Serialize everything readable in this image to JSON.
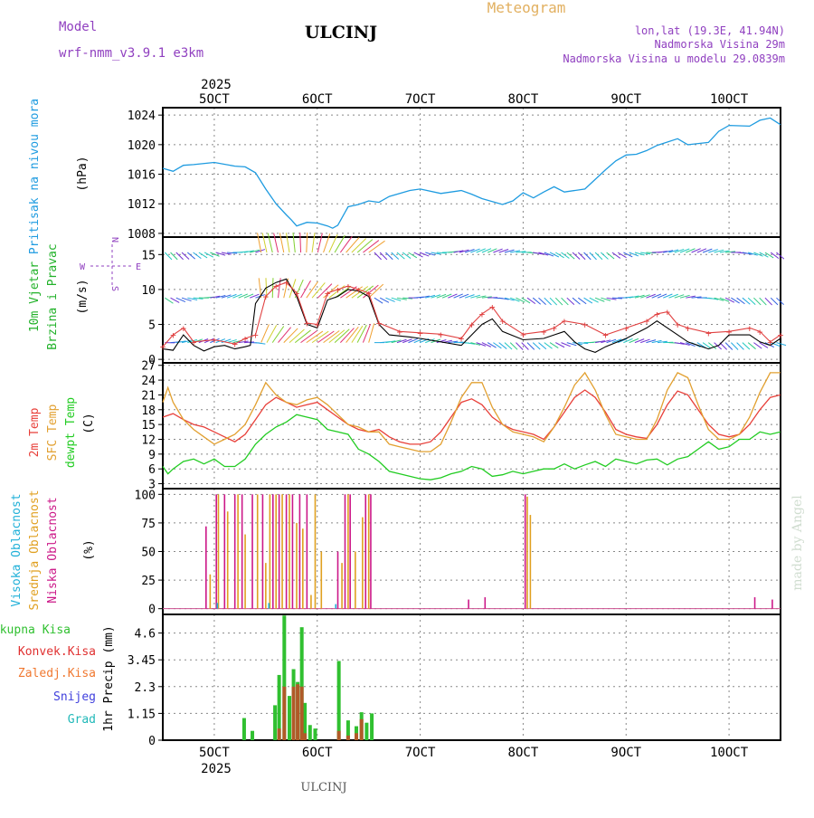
{
  "header": {
    "model_label": "Model",
    "model_name": "wrf-nmm_v3.9.1 e3km",
    "station": "ULCINJ",
    "product": "Meteogram",
    "lonlat": "lon,lat (19.3E, 41.94N)",
    "elevation": "Nadmorska Visina 29m",
    "model_elevation": "Nadmorska Visina u modelu 29.0839m",
    "footer_station": "ULCINJ",
    "watermark": "made by Angel"
  },
  "colors": {
    "pressure": "#1e9be0",
    "wind_label": "#22b22a",
    "temp2m": "#e8403a",
    "sfc_temp": "#e2a030",
    "dewpoint": "#22cc22",
    "high_cloud": "#20b0d8",
    "mid_cloud": "#e0a020",
    "low_cloud": "#cc1888",
    "total_precip": "#30c030",
    "conv_precip": "#e03030",
    "frozen_precip": "#f07830",
    "snow": "#4040dd",
    "hail": "#20b8b8",
    "purple": "#9040c0",
    "wind_speed_line": "#000000",
    "wind_gust": "#e04040"
  },
  "chart_data": [
    {
      "type": "line",
      "title": "Pritisak na nivou mora",
      "ylabel": "(hPa)",
      "ylim": [
        1007.5,
        1025
      ],
      "yticks": [
        1008,
        1012,
        1016,
        1020,
        1024
      ],
      "xlim": [
        4.5,
        10.5
      ],
      "grid": true,
      "series": [
        {
          "name": "Pritisak na nivou mora",
          "x": [
            4.5,
            4.6,
            4.7,
            4.8,
            5.0,
            5.2,
            5.3,
            5.4,
            5.5,
            5.6,
            5.7,
            5.75,
            5.8,
            5.9,
            6.0,
            6.1,
            6.15,
            6.2,
            6.3,
            6.4,
            6.5,
            6.6,
            6.7,
            6.9,
            7.0,
            7.2,
            7.4,
            7.5,
            7.6,
            7.8,
            7.9,
            8.0,
            8.1,
            8.2,
            8.3,
            8.4,
            8.6,
            8.8,
            8.9,
            9.0,
            9.1,
            9.2,
            9.3,
            9.5,
            9.6,
            9.8,
            9.9,
            10.0,
            10.2,
            10.3,
            10.4,
            10.5
          ],
          "values": [
            1016.8,
            1016.4,
            1017.2,
            1017.3,
            1017.6,
            1017.1,
            1017.0,
            1016.2,
            1014.0,
            1012.0,
            1010.5,
            1009.8,
            1009.0,
            1009.5,
            1009.4,
            1009.0,
            1008.7,
            1009.1,
            1011.6,
            1011.9,
            1012.4,
            1012.2,
            1013.0,
            1013.8,
            1014.0,
            1013.4,
            1013.8,
            1013.3,
            1012.7,
            1011.9,
            1012.4,
            1013.5,
            1012.8,
            1013.6,
            1014.3,
            1013.6,
            1014.0,
            1016.6,
            1017.8,
            1018.6,
            1018.7,
            1019.2,
            1019.9,
            1020.8,
            1020.0,
            1020.3,
            1021.8,
            1022.6,
            1022.5,
            1023.3,
            1023.6,
            1022.7
          ]
        }
      ]
    },
    {
      "type": "line",
      "title": "10m Vjetar Brzina i Pravac",
      "ylabel": "(m/s)",
      "ylim": [
        -0.5,
        17.5
      ],
      "yticks": [
        0,
        5,
        10,
        15
      ],
      "xlim": [
        4.5,
        10.5
      ],
      "grid": true,
      "direction_key": {
        "w": "W",
        "e": "E",
        "n": "N",
        "s": "S"
      },
      "series": [
        {
          "name": "speed",
          "x": [
            4.5,
            4.6,
            4.7,
            4.8,
            4.9,
            5.0,
            5.1,
            5.2,
            5.3,
            5.35,
            5.4,
            5.5,
            5.6,
            5.7,
            5.8,
            5.9,
            6.0,
            6.1,
            6.2,
            6.3,
            6.4,
            6.5,
            6.6,
            6.7,
            6.9,
            7.0,
            7.2,
            7.4,
            7.5,
            7.6,
            7.7,
            7.8,
            8.0,
            8.2,
            8.3,
            8.4,
            8.5,
            8.6,
            8.7,
            8.8,
            9.0,
            9.2,
            9.3,
            9.5,
            9.6,
            9.8,
            9.9,
            10.0,
            10.2,
            10.3,
            10.4,
            10.5
          ],
          "values": [
            1.5,
            1.3,
            3.5,
            2.0,
            1.2,
            1.8,
            2.0,
            1.5,
            1.8,
            2.0,
            8.0,
            10.2,
            11.0,
            11.5,
            9.0,
            5.0,
            4.5,
            8.5,
            9.0,
            10.0,
            9.8,
            9.0,
            5.0,
            3.5,
            3.2,
            3.0,
            2.5,
            2.0,
            3.5,
            5.0,
            5.8,
            4.0,
            2.8,
            3.0,
            3.5,
            4.0,
            2.5,
            1.5,
            1.0,
            1.8,
            3.0,
            4.5,
            5.5,
            3.5,
            2.5,
            1.5,
            2.0,
            3.5,
            3.5,
            2.5,
            2.0,
            3.0
          ]
        },
        {
          "name": "gust",
          "x": [
            4.5,
            4.6,
            4.7,
            4.8,
            5.0,
            5.2,
            5.3,
            5.4,
            5.5,
            5.6,
            5.7,
            5.8,
            5.9,
            6.0,
            6.1,
            6.2,
            6.3,
            6.4,
            6.5,
            6.6,
            6.8,
            7.0,
            7.2,
            7.4,
            7.5,
            7.6,
            7.7,
            7.8,
            8.0,
            8.2,
            8.3,
            8.4,
            8.6,
            8.8,
            9.0,
            9.2,
            9.3,
            9.4,
            9.5,
            9.6,
            9.8,
            10.0,
            10.2,
            10.3,
            10.4,
            10.5
          ],
          "values": [
            1.8,
            3.5,
            4.5,
            2.5,
            2.8,
            2.2,
            3.0,
            3.5,
            9.0,
            10.5,
            11.0,
            9.5,
            5.2,
            5.0,
            9.5,
            10.0,
            10.5,
            10.0,
            9.5,
            5.2,
            4.0,
            3.8,
            3.6,
            3.0,
            5.0,
            6.5,
            7.5,
            5.5,
            3.6,
            4.0,
            4.5,
            5.5,
            5.0,
            3.5,
            4.5,
            5.5,
            6.5,
            6.8,
            5.0,
            4.5,
            3.8,
            4.0,
            4.5,
            4.0,
            2.5,
            3.5
          ]
        }
      ]
    },
    {
      "type": "line",
      "title": "2m Temp / SFC Temp / dewpt Temp",
      "ylabel": "(C)",
      "ylim": [
        2,
        27.5
      ],
      "yticks": [
        3,
        6,
        9,
        12,
        15,
        18,
        21,
        24,
        27
      ],
      "xlim": [
        4.5,
        10.5
      ],
      "grid": true,
      "series": [
        {
          "name": "2m Temp",
          "x": [
            4.5,
            4.6,
            4.7,
            4.8,
            4.9,
            5.0,
            5.1,
            5.2,
            5.3,
            5.4,
            5.5,
            5.6,
            5.7,
            5.8,
            5.9,
            6.0,
            6.1,
            6.2,
            6.3,
            6.4,
            6.5,
            6.6,
            6.7,
            6.8,
            6.9,
            7.0,
            7.1,
            7.2,
            7.3,
            7.4,
            7.5,
            7.6,
            7.7,
            7.8,
            7.9,
            8.0,
            8.1,
            8.2,
            8.3,
            8.4,
            8.5,
            8.6,
            8.7,
            8.8,
            8.9,
            9.0,
            9.1,
            9.2,
            9.3,
            9.4,
            9.5,
            9.6,
            9.7,
            9.8,
            9.9,
            10.0,
            10.1,
            10.2,
            10.3,
            10.4,
            10.5
          ],
          "values": [
            16.5,
            17.2,
            16.0,
            15.0,
            14.5,
            13.5,
            12.5,
            11.5,
            13.0,
            16.0,
            19.0,
            20.5,
            19.5,
            18.5,
            19.0,
            19.5,
            18.0,
            16.5,
            15.0,
            14.0,
            13.5,
            14.0,
            12.5,
            11.5,
            11.0,
            11.0,
            11.5,
            13.5,
            16.5,
            19.5,
            20.2,
            19.0,
            16.5,
            15.0,
            14.0,
            13.5,
            13.0,
            12.0,
            14.5,
            17.5,
            20.5,
            22.0,
            20.5,
            17.5,
            14.0,
            13.0,
            12.5,
            12.2,
            15.0,
            19.0,
            21.8,
            21.0,
            18.0,
            15.0,
            13.0,
            12.5,
            13.0,
            15.0,
            18.0,
            20.5,
            21.0
          ]
        },
        {
          "name": "SFC Temp",
          "x": [
            4.5,
            4.55,
            4.6,
            4.7,
            4.8,
            4.9,
            5.0,
            5.1,
            5.2,
            5.3,
            5.4,
            5.5,
            5.6,
            5.7,
            5.8,
            5.9,
            6.0,
            6.1,
            6.2,
            6.3,
            6.4,
            6.5,
            6.6,
            6.7,
            6.8,
            6.9,
            7.0,
            7.1,
            7.2,
            7.3,
            7.4,
            7.5,
            7.6,
            7.7,
            7.8,
            7.9,
            8.0,
            8.1,
            8.2,
            8.3,
            8.4,
            8.5,
            8.6,
            8.7,
            8.8,
            8.9,
            9.0,
            9.1,
            9.2,
            9.3,
            9.4,
            9.5,
            9.6,
            9.7,
            9.8,
            9.9,
            10.0,
            10.1,
            10.2,
            10.3,
            10.4,
            10.5
          ],
          "values": [
            19.5,
            22.5,
            19.5,
            16.0,
            14.0,
            12.5,
            11.0,
            12.0,
            13.0,
            15.0,
            19.0,
            23.5,
            21.0,
            19.5,
            19.0,
            20.0,
            20.5,
            19.0,
            17.0,
            15.0,
            14.5,
            13.5,
            13.5,
            11.0,
            10.5,
            10.0,
            9.5,
            9.5,
            11.0,
            15.5,
            20.5,
            23.5,
            23.5,
            18.5,
            15.0,
            13.5,
            13.0,
            12.5,
            11.5,
            14.5,
            18.5,
            23.0,
            25.5,
            22.0,
            17.0,
            13.0,
            12.5,
            12.0,
            12.0,
            16.0,
            22.0,
            25.5,
            24.5,
            19.0,
            14.0,
            12.0,
            12.0,
            13.0,
            16.5,
            21.5,
            25.5,
            25.5
          ]
        },
        {
          "name": "dewpt Temp",
          "x": [
            4.5,
            4.55,
            4.6,
            4.7,
            4.8,
            4.9,
            5.0,
            5.1,
            5.2,
            5.3,
            5.4,
            5.5,
            5.6,
            5.7,
            5.8,
            5.9,
            6.0,
            6.1,
            6.2,
            6.3,
            6.4,
            6.5,
            6.6,
            6.7,
            6.8,
            6.9,
            7.0,
            7.1,
            7.2,
            7.3,
            7.4,
            7.5,
            7.6,
            7.7,
            7.8,
            7.9,
            8.0,
            8.1,
            8.2,
            8.3,
            8.4,
            8.5,
            8.6,
            8.7,
            8.8,
            8.9,
            9.0,
            9.1,
            9.2,
            9.3,
            9.4,
            9.5,
            9.6,
            9.7,
            9.8,
            9.9,
            10.0,
            10.1,
            10.2,
            10.3,
            10.4,
            10.5
          ],
          "values": [
            6.5,
            5.0,
            6.0,
            7.5,
            8.0,
            7.0,
            8.0,
            6.5,
            6.5,
            8.0,
            11.0,
            13.0,
            14.5,
            15.5,
            17.0,
            16.5,
            16.0,
            14.0,
            13.5,
            13.0,
            10.0,
            9.0,
            7.5,
            5.5,
            5.0,
            4.5,
            4.0,
            3.8,
            4.2,
            5.0,
            5.5,
            6.5,
            6.0,
            4.5,
            4.8,
            5.5,
            5.0,
            5.5,
            6.0,
            6.0,
            7.0,
            6.0,
            6.8,
            7.5,
            6.5,
            8.0,
            7.5,
            7.0,
            7.8,
            8.0,
            6.8,
            8.0,
            8.5,
            10.0,
            11.5,
            10.0,
            10.5,
            12.0,
            12.0,
            13.5,
            13.0,
            13.5
          ]
        }
      ]
    },
    {
      "type": "bar",
      "title": "Visoka Oblacnost / Srednja Oblacnost / Niska Oblacnost",
      "ylabel": "(%)",
      "ylim": [
        -5,
        105
      ],
      "yticks": [
        0,
        25,
        50,
        75,
        100
      ],
      "xlim": [
        4.5,
        10.5
      ],
      "grid": true,
      "series": [
        {
          "name": "Niska Oblacnost",
          "x": [
            4.92,
            5.02,
            5.1,
            5.2,
            5.27,
            5.37,
            5.47,
            5.57,
            5.63,
            5.7,
            5.76,
            5.83,
            5.9,
            6.2,
            6.27,
            6.32,
            6.47,
            6.52,
            7.47,
            7.63,
            8.02,
            10.25,
            10.42
          ],
          "values": [
            72,
            100,
            100,
            100,
            100,
            100,
            100,
            100,
            100,
            100,
            100,
            100,
            100,
            50,
            100,
            100,
            100,
            100,
            8,
            10,
            100,
            10,
            8
          ]
        },
        {
          "name": "Srednja Oblacnost",
          "x": [
            4.96,
            5.04,
            5.13,
            5.23,
            5.3,
            5.42,
            5.5,
            5.54,
            5.6,
            5.66,
            5.73,
            5.8,
            5.86,
            5.94,
            5.98,
            6.04,
            6.24,
            6.3,
            6.37,
            6.44,
            6.5,
            8.04,
            8.07
          ],
          "values": [
            30,
            100,
            85,
            100,
            65,
            100,
            40,
            100,
            100,
            100,
            100,
            75,
            70,
            12,
            100,
            50,
            40,
            100,
            50,
            80,
            100,
            98,
            82
          ]
        },
        {
          "name": "Visoka Oblacnost",
          "x": [
            5.03,
            5.53,
            6.18
          ],
          "values": [
            5,
            5,
            4
          ]
        }
      ]
    },
    {
      "type": "bar",
      "title": "1hr Precip",
      "ylabel": "1hr Precip (mm)",
      "ylim": [
        0,
        5.4
      ],
      "yticks": [
        0,
        1.15,
        2.3,
        3.45,
        4.6
      ],
      "ytick_labels": [
        "0",
        "1.15",
        "2.3",
        "3.45",
        "4.6"
      ],
      "xlim": [
        4.5,
        10.5
      ],
      "grid": true,
      "series": [
        {
          "name": "Ukupna Kisa",
          "x": [
            5.29,
            5.37,
            5.59,
            5.63,
            5.68,
            5.73,
            5.77,
            5.81,
            5.85,
            5.88,
            5.93,
            5.98,
            6.21,
            6.3,
            6.38,
            6.43,
            6.48,
            6.53
          ],
          "values": [
            0.95,
            0.4,
            1.5,
            2.8,
            5.35,
            1.9,
            3.05,
            2.5,
            4.85,
            1.6,
            0.65,
            0.5,
            3.4,
            0.85,
            0.6,
            1.2,
            0.75,
            1.15
          ]
        },
        {
          "name": "Konvek.Kisa",
          "x": [
            5.63,
            5.68,
            5.77,
            5.81,
            5.85,
            5.88,
            6.21,
            6.3,
            6.38,
            6.43
          ],
          "values": [
            0.5,
            2.3,
            2.3,
            2.4,
            2.3,
            0.3,
            0.4,
            0.2,
            0.3,
            0.9
          ]
        }
      ]
    }
  ],
  "x_axis": {
    "year": "2025",
    "ticks": [
      {
        "label": "5OCT",
        "value": 5
      },
      {
        "label": "6OCT",
        "value": 6
      },
      {
        "label": "7OCT",
        "value": 7
      },
      {
        "label": "8OCT",
        "value": 8
      },
      {
        "label": "9OCT",
        "value": 9
      },
      {
        "label": "10OCT",
        "value": 10
      }
    ]
  },
  "legend": {
    "pressure": "Pritisak na nivou mora",
    "pressure_unit": "(hPa)",
    "wind_a": "10m Vjetar",
    "wind_b": "Brzina i Pravac",
    "wind_unit": "(m/s)",
    "temp2m": "2m Temp",
    "sfc": "SFC Temp",
    "dew": "dewpt Temp",
    "temp_unit": "(C)",
    "high": "Visoka Oblacnost",
    "mid": "Srednja Oblacnost",
    "low": "Niska Oblacnost",
    "cloud_unit": "(%)",
    "total": "Ukupna Kisa",
    "conv": "Konvek.Kisa",
    "frozen": "Zaledj.Kisa",
    "snow": "Snijeg",
    "hail": "Grad",
    "precip_unit": "1hr Precip (mm)"
  }
}
